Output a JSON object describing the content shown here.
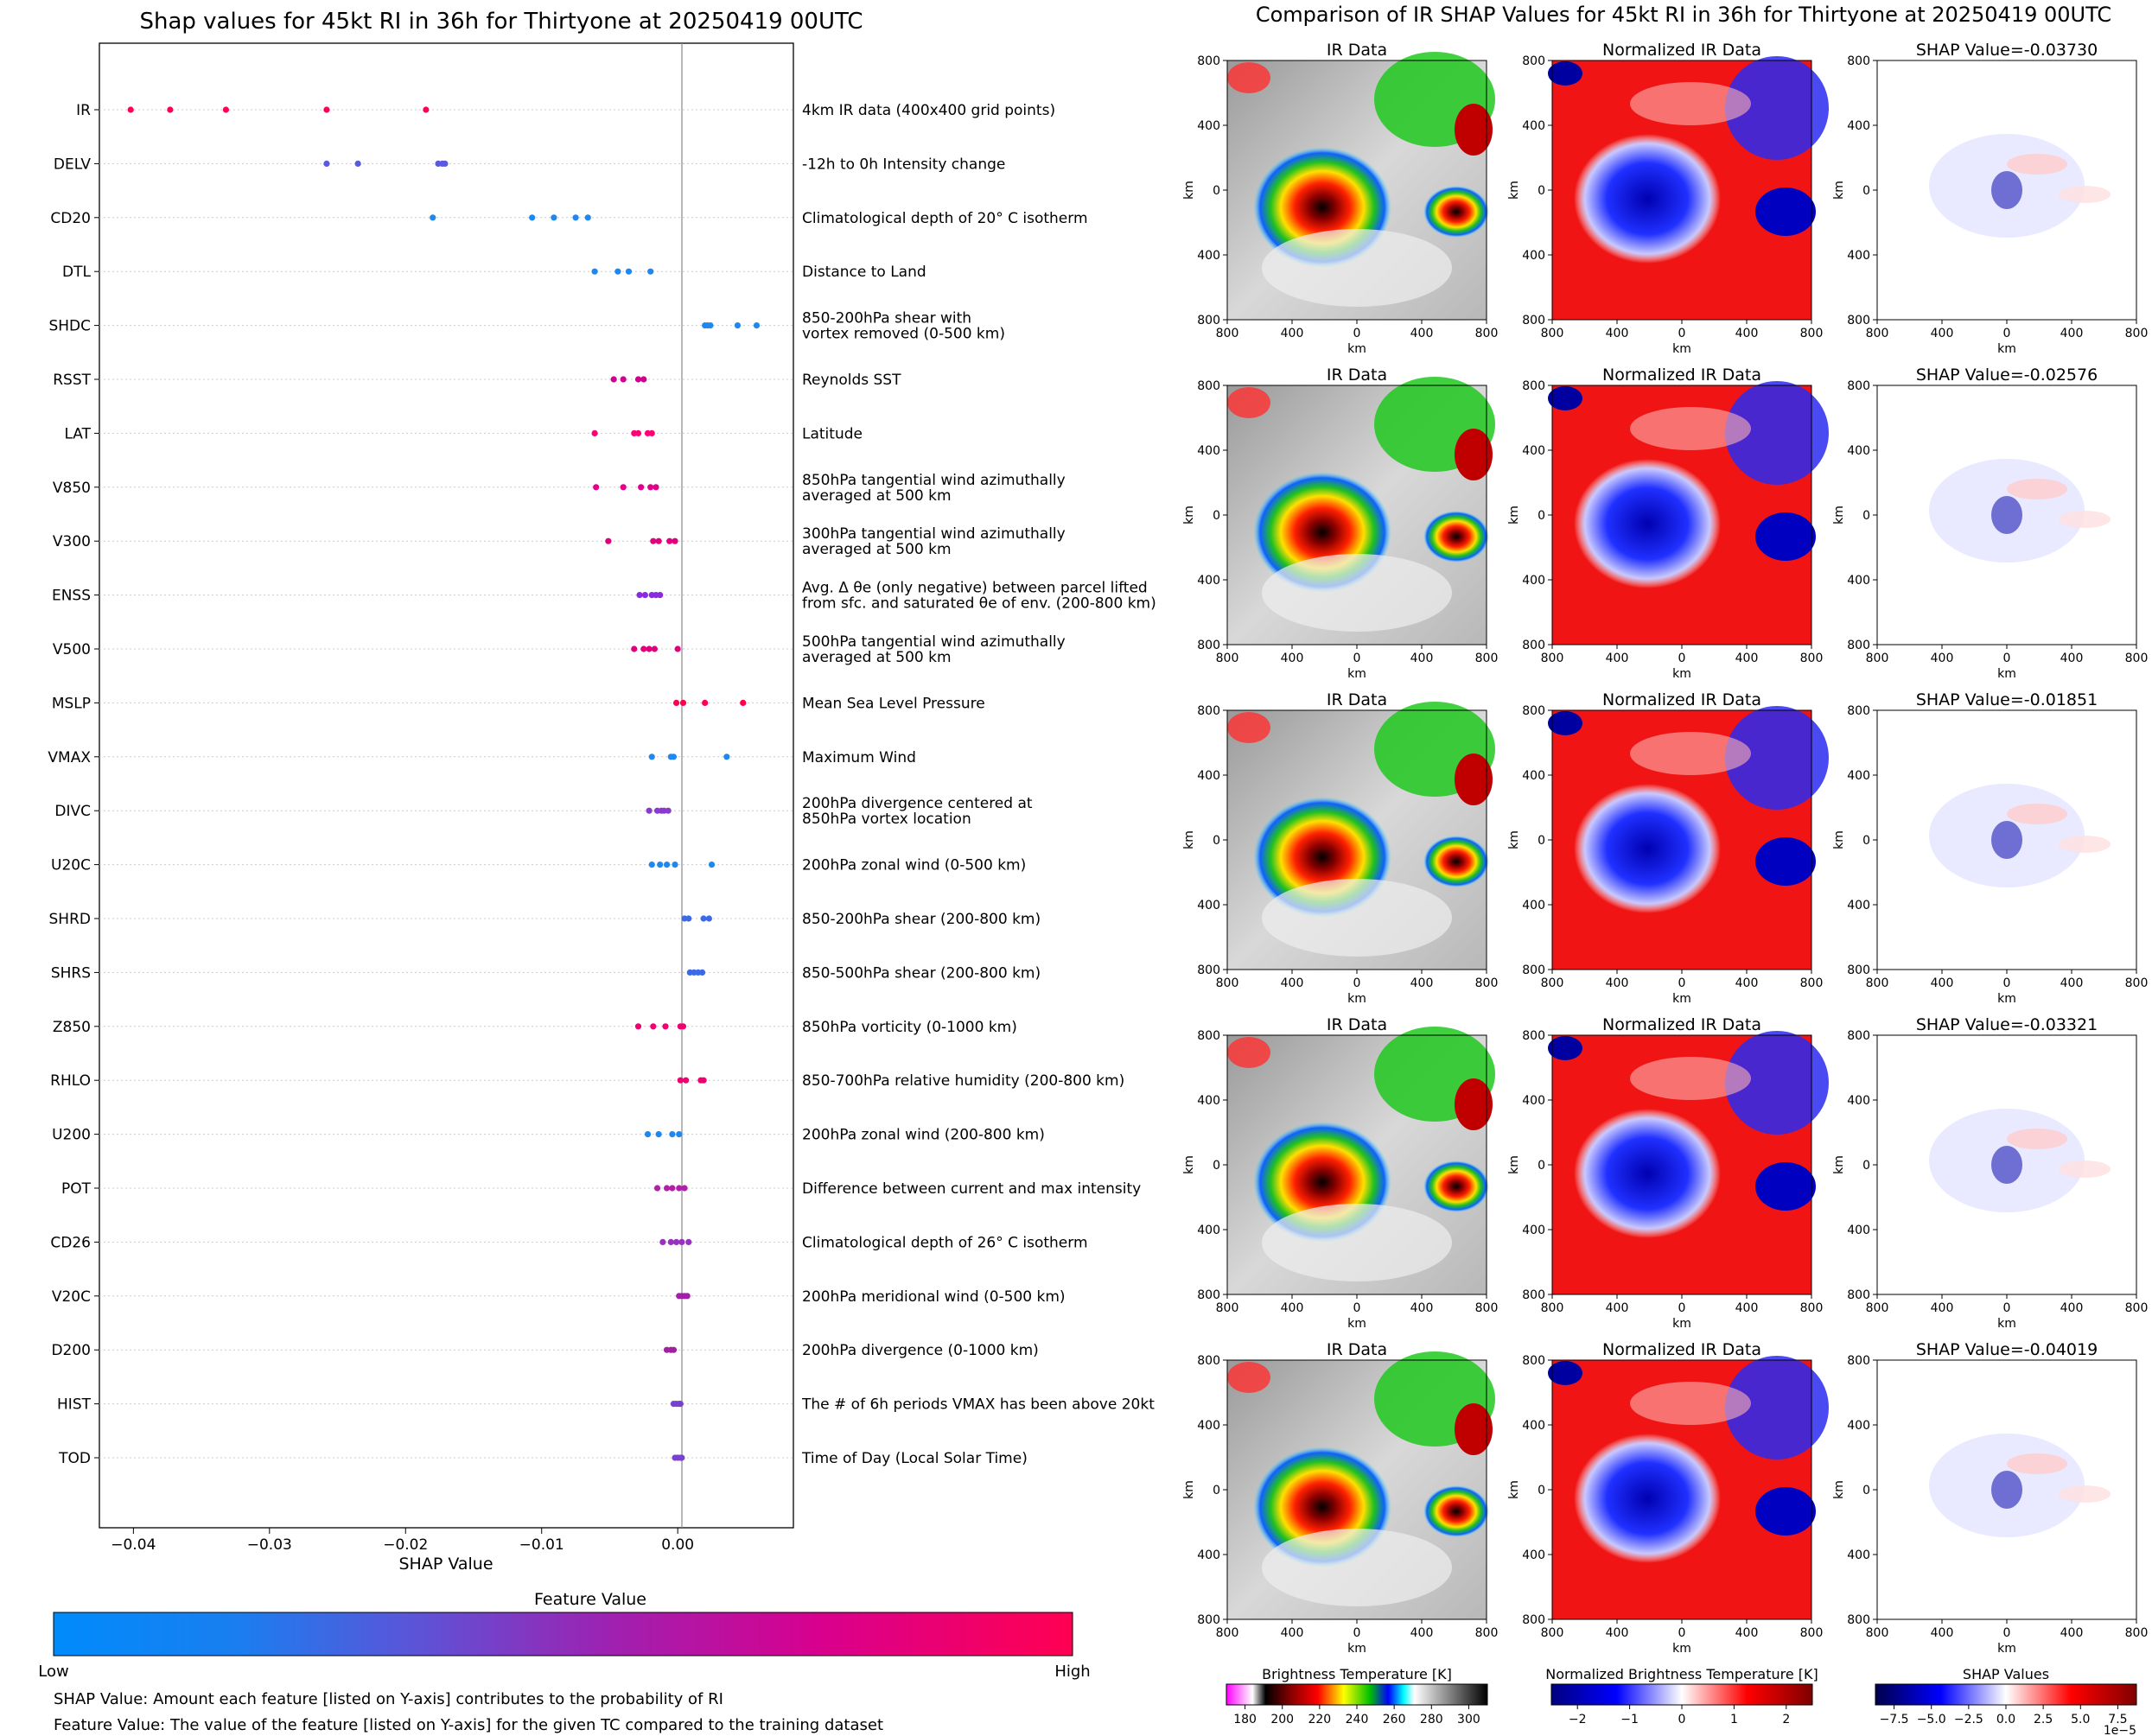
{
  "left_title": "Shap values for 45kt RI in 36h for Thirtyone at 20250419 00UTC",
  "right_title": "Comparison of IR SHAP Values for 45kt RI in 36h for Thirtyone at 20250419 00UTC",
  "colorbar": {
    "title": "Feature Value",
    "low": "Low",
    "high": "High",
    "low_color": "#008bfb",
    "high_color": "#ff0052"
  },
  "notes": [
    "SHAP Value: Amount each feature [listed on Y-axis] contributes to the probability of RI",
    "Feature Value: The value of the feature [listed on Y-axis] for the given TC compared to the training dataset"
  ],
  "panel_titles": {
    "ir": "IR Data",
    "norm": "Normalized IR Data",
    "shap_prefix": "SHAP Value="
  },
  "panel_axis": {
    "xlabel": "km",
    "ylabel": "km",
    "ticks": [
      "800",
      "400",
      "0",
      "400",
      "800"
    ]
  },
  "colorbars_bottom": [
    {
      "label": "Brightness Temperature [K]",
      "ticks": [
        "180",
        "200",
        "220",
        "240",
        "260",
        "280",
        "300"
      ]
    },
    {
      "label": "Normalized Brightness Temperature [K]",
      "ticks": [
        "−2",
        "−1",
        "0",
        "1",
        "2"
      ]
    },
    {
      "label": "SHAP Values",
      "ticks": [
        "−7.5",
        "−5.0",
        "−2.5",
        "0.0",
        "2.5",
        "5.0",
        "7.5"
      ],
      "offset": "1e−5"
    }
  ],
  "chart_data": [
    {
      "type": "scatter",
      "title": "Shap values for 45kt RI in 36h for Thirtyone at 20250419 00UTC",
      "xlabel": "SHAP Value",
      "xlim": [
        -0.0425,
        0.0085
      ],
      "xticks": [
        "−0.04",
        "−0.03",
        "−0.02",
        "−0.01",
        "0.00"
      ],
      "xtick_values": [
        -0.04,
        -0.03,
        -0.02,
        -0.01,
        0.0
      ],
      "features": [
        {
          "name": "IR",
          "description": "4km IR data (400x400 grid points)",
          "color": "#ff0055",
          "values": [
            -0.0402,
            -0.0373,
            -0.0332,
            -0.0258,
            -0.0185
          ]
        },
        {
          "name": "DELV",
          "description": "-12h to 0h Intensity change",
          "color": "#5a5ae0",
          "values": [
            -0.0258,
            -0.0235,
            -0.0176,
            -0.0173,
            -0.0171
          ]
        },
        {
          "name": "CD20",
          "description": "Climatological depth of 20° C isotherm",
          "color": "#1e88f0",
          "values": [
            -0.018,
            -0.0107,
            -0.0091,
            -0.0075,
            -0.0066
          ]
        },
        {
          "name": "DTL",
          "description": "Distance to Land",
          "color": "#1e88f0",
          "values": [
            -0.0061,
            -0.0044,
            -0.0036,
            -0.002
          ]
        },
        {
          "name": "SHDC",
          "description": "850-200hPa shear with\nvortex removed (0-500 km)",
          "color": "#1e88f0",
          "values": [
            0.002,
            0.0022,
            0.0024,
            0.0044,
            0.0058
          ]
        },
        {
          "name": "RSST",
          "description": "Reynolds SST",
          "color": "#d0008f",
          "values": [
            -0.0047,
            -0.004,
            -0.0029,
            -0.0025
          ]
        },
        {
          "name": "LAT",
          "description": "Latitude",
          "color": "#ff0077",
          "values": [
            -0.0061,
            -0.0032,
            -0.0029,
            -0.0022,
            -0.0019
          ]
        },
        {
          "name": "V850",
          "description": "850hPa tangential wind azimuthally\naveraged at 500 km",
          "color": "#e0008a",
          "values": [
            -0.006,
            -0.004,
            -0.0027,
            -0.002,
            -0.0016
          ]
        },
        {
          "name": "V300",
          "description": "300hPa tangential wind azimuthally\naveraged at 500 km",
          "color": "#e0007e",
          "values": [
            -0.0051,
            -0.0018,
            -0.0014,
            -0.0006,
            -0.0002
          ]
        },
        {
          "name": "ENSS",
          "description": "Avg. Δ θe (only negative) between parcel lifted\nfrom sfc. and saturated θe of env. (200-800 km)",
          "color": "#8a2be2",
          "values": [
            -0.0028,
            -0.0024,
            -0.0019,
            -0.0016,
            -0.0013
          ]
        },
        {
          "name": "V500",
          "description": "500hPa tangential wind azimuthally\naveraged at 500 km",
          "color": "#e0007e",
          "values": [
            -0.0032,
            -0.0025,
            -0.0021,
            -0.0017,
            0.0
          ]
        },
        {
          "name": "MSLP",
          "description": "Mean Sea Level Pressure",
          "color": "#ff0050",
          "values": [
            -0.0001,
            0.0004,
            0.002,
            0.0048
          ]
        },
        {
          "name": "VMAX",
          "description": "Maximum Wind",
          "color": "#1e88f0",
          "values": [
            -0.0019,
            -0.0005,
            -0.0003,
            0.0036
          ]
        },
        {
          "name": "DIVC",
          "description": "200hPa divergence centered at\n850hPa vortex location",
          "color": "#8a3ad0",
          "values": [
            -0.0021,
            -0.0015,
            -0.0012,
            -0.001,
            -0.0007
          ]
        },
        {
          "name": "U20C",
          "description": "200hPa zonal wind (0-500 km)",
          "color": "#1e88f0",
          "values": [
            -0.0019,
            -0.0013,
            -0.0008,
            -0.0002,
            0.0025
          ]
        },
        {
          "name": "SHRD",
          "description": "850-200hPa shear (200-800 km)",
          "color": "#3a6ae8",
          "values": [
            0.0005,
            0.0008,
            0.0019,
            0.0023
          ]
        },
        {
          "name": "SHRS",
          "description": "850-500hPa shear (200-800 km)",
          "color": "#3a6ae8",
          "values": [
            0.0009,
            0.0012,
            0.0015,
            0.0018
          ]
        },
        {
          "name": "Z850",
          "description": "850hPa vorticity (0-1000 km)",
          "color": "#f00070",
          "values": [
            -0.0029,
            -0.0018,
            -0.0009,
            0.0002,
            0.0004
          ]
        },
        {
          "name": "RHLO",
          "description": "850-700hPa relative humidity (200-800 km)",
          "color": "#f00070",
          "values": [
            0.0002,
            0.0006,
            0.0017,
            0.0019
          ]
        },
        {
          "name": "U200",
          "description": "200hPa zonal wind (200-800 km)",
          "color": "#1e88f0",
          "values": [
            -0.0022,
            -0.0014,
            -0.0004,
            0.0001
          ]
        },
        {
          "name": "POT",
          "description": "Difference between current and max intensity",
          "color": "#b21fa8",
          "values": [
            -0.0015,
            -0.0008,
            -0.0004,
            0.0001,
            0.0005
          ]
        },
        {
          "name": "CD26",
          "description": "Climatological depth of 26° C isotherm",
          "color": "#9a30c0",
          "values": [
            -0.0011,
            -0.0005,
            -0.0001,
            0.0003,
            0.0008
          ]
        },
        {
          "name": "V20C",
          "description": "200hPa meridional wind (0-500 km)",
          "color": "#a020a8",
          "values": [
            0.0001,
            0.0003,
            0.0005,
            0.0007
          ]
        },
        {
          "name": "D200",
          "description": "200hPa divergence (0-1000 km)",
          "color": "#a020a0",
          "values": [
            -0.0008,
            -0.0005,
            -0.0003
          ]
        },
        {
          "name": "HIST",
          "description": "The # of 6h periods VMAX has been above 20kt",
          "color": "#7a40d0",
          "values": [
            -0.0003,
            -0.0001,
            0.0001,
            0.0002
          ]
        },
        {
          "name": "TOD",
          "description": "Time of Day (Local Solar Time)",
          "color": "#7a40d0",
          "values": [
            -0.0002,
            0.0,
            0.0002,
            0.0003
          ]
        }
      ]
    },
    {
      "type": "heatmap",
      "title": "Comparison of IR SHAP Values for 45kt RI in 36h for Thirtyone at 20250419 00UTC",
      "shap_values": [
        "-0.03730",
        "-0.02576",
        "-0.01851",
        "-0.03321",
        "-0.04019"
      ],
      "xlabel": "km",
      "ylabel": "km"
    }
  ]
}
